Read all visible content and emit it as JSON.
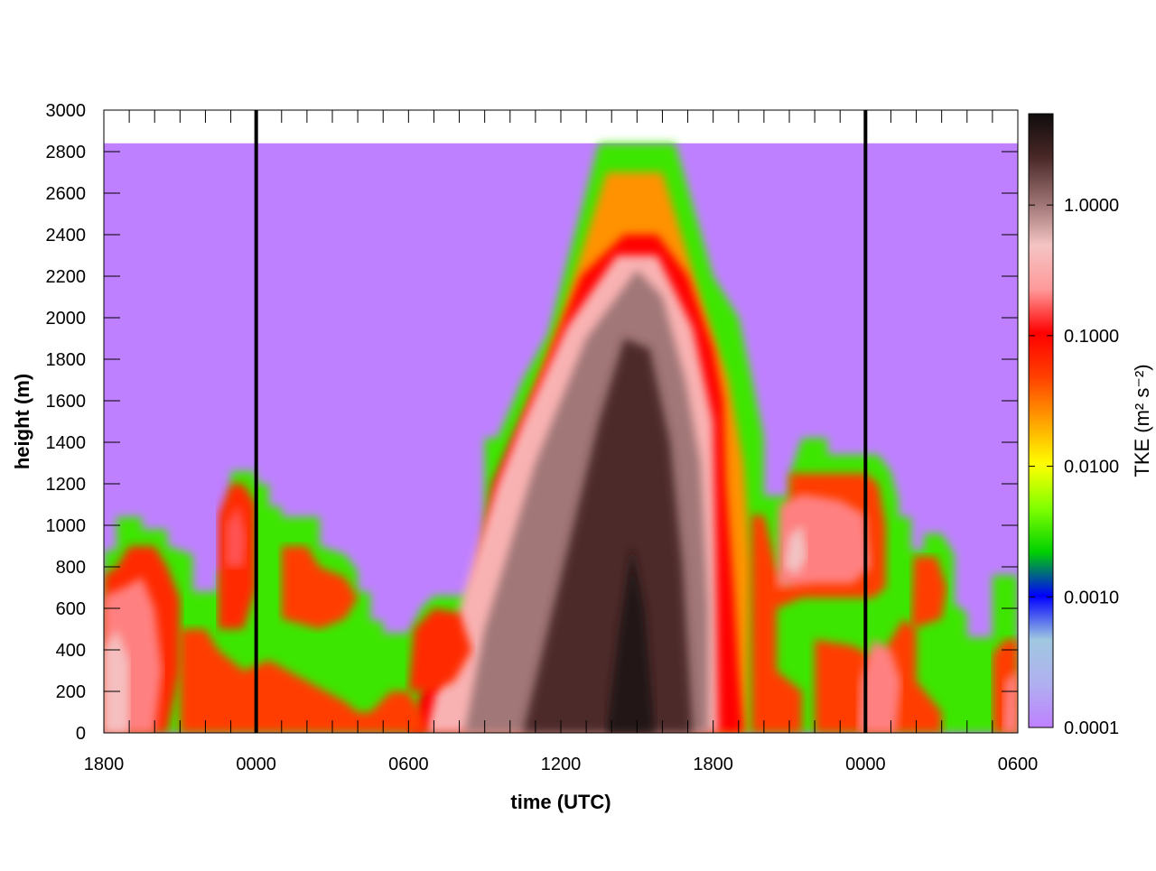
{
  "chart_data": {
    "type": "heatmap",
    "title": "",
    "xlabel": "time (UTC)",
    "ylabel": "height (m)",
    "x_ticks": [
      "1800",
      "0000",
      "0600",
      "1200",
      "1800",
      "0000",
      "0600"
    ],
    "x_tick_hours": [
      0,
      6,
      12,
      18,
      24,
      30,
      36
    ],
    "xlim_hours": [
      0,
      36
    ],
    "y_ticks": [
      0,
      200,
      400,
      600,
      800,
      1000,
      1200,
      1400,
      1600,
      1800,
      2000,
      2200,
      2400,
      2600,
      2800,
      3000
    ],
    "ylim": [
      0,
      3000
    ],
    "data_top_height": 2840,
    "midnight_lines_hours": [
      6,
      30
    ],
    "colorbar": {
      "label": "TKE (m² s⁻²)",
      "scale": "log",
      "range": [
        0.0001,
        5.0
      ],
      "tick_labels": [
        "1.0000",
        "0.1000",
        "0.0100",
        "0.0010",
        "0.0001"
      ],
      "tick_values": [
        1.0,
        0.1,
        0.01,
        0.001,
        0.0001
      ],
      "colors": [
        "#bf80ff",
        "#b0b0f0",
        "#a0c8e0",
        "#0000ff",
        "#00d000",
        "#80ff00",
        "#ffff00",
        "#ffa000",
        "#ff4000",
        "#ff0000",
        "#ff9a9a",
        "#f4c4c4",
        "#9a7070",
        "#4a2828",
        "#100c0c"
      ]
    },
    "layers": [
      {
        "name": "background-low-tke",
        "log_tke": -4,
        "points": [
          [
            0,
            0
          ],
          [
            0,
            2840
          ],
          [
            36,
            2840
          ],
          [
            36,
            0
          ]
        ]
      },
      {
        "name": "lowest-wavy",
        "log_tke": -2.5,
        "points": [
          [
            0,
            0
          ],
          [
            0,
            880
          ],
          [
            0.5,
            880
          ],
          [
            0.5,
            1040
          ],
          [
            1.5,
            1040
          ],
          [
            1.5,
            980
          ],
          [
            2.5,
            980
          ],
          [
            2.5,
            900
          ],
          [
            3.5,
            860
          ],
          [
            3.5,
            680
          ],
          [
            4.5,
            680
          ],
          [
            4.5,
            780
          ],
          [
            5,
            780
          ],
          [
            5,
            1260
          ],
          [
            5.5,
            1260
          ],
          [
            6,
            1260
          ],
          [
            6,
            1200
          ],
          [
            6.5,
            1200
          ],
          [
            6.5,
            1090
          ],
          [
            7,
            1090
          ],
          [
            7,
            1040
          ],
          [
            8.5,
            1040
          ],
          [
            8.5,
            900
          ],
          [
            9.5,
            860
          ],
          [
            10,
            780
          ],
          [
            10,
            680
          ],
          [
            10.5,
            680
          ],
          [
            10.5,
            540
          ],
          [
            11,
            540
          ],
          [
            11,
            480
          ],
          [
            12,
            480
          ],
          [
            12.5,
            600
          ],
          [
            13,
            660
          ],
          [
            14.5,
            660
          ],
          [
            14.5,
            700
          ],
          [
            15,
            700
          ],
          [
            15,
            1420
          ],
          [
            15.5,
            1420
          ],
          [
            16.5,
            1700
          ],
          [
            17.5,
            1920
          ],
          [
            19.5,
            2840
          ],
          [
            22.5,
            2840
          ],
          [
            24,
            2200
          ],
          [
            25,
            2000
          ],
          [
            25.5,
            1720
          ],
          [
            26,
            1420
          ],
          [
            26,
            1140
          ],
          [
            27,
            1140
          ],
          [
            27,
            1240
          ],
          [
            27.5,
            1420
          ],
          [
            28.5,
            1420
          ],
          [
            28.5,
            1340
          ],
          [
            30,
            1340
          ],
          [
            30.5,
            1340
          ],
          [
            31,
            1260
          ],
          [
            31.3,
            1120
          ],
          [
            31.3,
            1040
          ],
          [
            31.8,
            1040
          ],
          [
            31.8,
            880
          ],
          [
            32.3,
            880
          ],
          [
            32.3,
            960
          ],
          [
            33,
            960
          ],
          [
            33.5,
            860
          ],
          [
            33.5,
            620
          ],
          [
            34,
            580
          ],
          [
            34,
            460
          ],
          [
            35,
            460
          ],
          [
            35,
            600
          ],
          [
            35,
            760
          ],
          [
            36,
            760
          ],
          [
            36,
            0
          ]
        ]
      },
      {
        "name": "wedge-middle",
        "log_tke": -1.6,
        "points": [
          [
            15.8,
            0
          ],
          [
            15.8,
            1200
          ],
          [
            16.8,
            1600
          ],
          [
            18,
            2000
          ],
          [
            19.8,
            2700
          ],
          [
            22,
            2700
          ],
          [
            23.5,
            2100
          ],
          [
            24.6,
            1700
          ],
          [
            25.2,
            1300
          ],
          [
            25.5,
            800
          ],
          [
            25.3,
            0
          ]
        ]
      },
      {
        "name": "wedge-outer",
        "log_tke": -1.0,
        "points": [
          [
            12,
            0
          ],
          [
            12.5,
            200
          ],
          [
            13.5,
            500
          ],
          [
            14.5,
            600
          ],
          [
            15,
            1000
          ],
          [
            15.3,
            1200
          ],
          [
            16,
            1400
          ],
          [
            17.3,
            1750
          ],
          [
            18.8,
            2200
          ],
          [
            20.5,
            2400
          ],
          [
            21.8,
            2400
          ],
          [
            23,
            2200
          ],
          [
            24,
            1850
          ],
          [
            24.4,
            1600
          ],
          [
            24.5,
            1200
          ],
          [
            24.8,
            700
          ],
          [
            25,
            300
          ],
          [
            25.2,
            0
          ]
        ]
      },
      {
        "name": "wedge-pink",
        "log_tke": -0.45,
        "points": [
          [
            12.7,
            0
          ],
          [
            13.5,
            400
          ],
          [
            14.5,
            800
          ],
          [
            15.5,
            1200
          ],
          [
            16.5,
            1500
          ],
          [
            18.2,
            1950
          ],
          [
            20.2,
            2300
          ],
          [
            21.8,
            2300
          ],
          [
            23.2,
            1950
          ],
          [
            24,
            1500
          ],
          [
            24.1,
            900
          ],
          [
            24.2,
            0
          ]
        ]
      },
      {
        "name": "wedge-brown",
        "log_tke": 0.0,
        "points": [
          [
            14.2,
            0
          ],
          [
            15,
            500
          ],
          [
            16,
            900
          ],
          [
            17,
            1300
          ],
          [
            18,
            1600
          ],
          [
            19,
            1900
          ],
          [
            21,
            2230
          ],
          [
            22,
            2100
          ],
          [
            22.9,
            1700
          ],
          [
            23.5,
            1300
          ],
          [
            23.8,
            600
          ],
          [
            23.8,
            0
          ]
        ]
      },
      {
        "name": "wedge-dark",
        "log_tke": 0.35,
        "points": [
          [
            16.5,
            0
          ],
          [
            17.5,
            500
          ],
          [
            18.5,
            1000
          ],
          [
            19.5,
            1500
          ],
          [
            20.5,
            1900
          ],
          [
            21.5,
            1850
          ],
          [
            22.3,
            1400
          ],
          [
            22.8,
            800
          ],
          [
            23.2,
            0
          ]
        ]
      },
      {
        "name": "wedge-core",
        "log_tke": 0.6,
        "points": [
          [
            19.8,
            0
          ],
          [
            20.3,
            500
          ],
          [
            20.8,
            900
          ],
          [
            21.3,
            600
          ],
          [
            21.7,
            0
          ]
        ]
      },
      {
        "name": "left-plume-red",
        "log_tke": -1.2,
        "points": [
          [
            0,
            0
          ],
          [
            0,
            760
          ],
          [
            0.5,
            800
          ],
          [
            1,
            900
          ],
          [
            2,
            900
          ],
          [
            2.5,
            800
          ],
          [
            3,
            650
          ],
          [
            3,
            300
          ],
          [
            2.5,
            0
          ]
        ]
      },
      {
        "name": "left-plume-pink",
        "log_tke": -0.7,
        "points": [
          [
            0,
            0
          ],
          [
            0,
            660
          ],
          [
            0.8,
            700
          ],
          [
            1.5,
            750
          ],
          [
            2,
            600
          ],
          [
            2.3,
            300
          ],
          [
            2,
            0
          ]
        ]
      },
      {
        "name": "left-plume-brown",
        "log_tke": -0.35,
        "points": [
          [
            0,
            0
          ],
          [
            0,
            400
          ],
          [
            0.5,
            500
          ],
          [
            1,
            350
          ],
          [
            1,
            0
          ]
        ]
      },
      {
        "name": "low-red-band",
        "log_tke": -1.3,
        "points": [
          [
            3,
            0
          ],
          [
            3,
            500
          ],
          [
            4,
            500
          ],
          [
            4.5,
            400
          ],
          [
            5.5,
            300
          ],
          [
            6.5,
            350
          ],
          [
            8,
            250
          ],
          [
            9.5,
            150
          ],
          [
            10,
            100
          ],
          [
            10.5,
            100
          ],
          [
            11.3,
            200
          ],
          [
            12,
            200
          ],
          [
            12.5,
            100
          ],
          [
            12.7,
            0
          ]
        ]
      },
      {
        "name": "pre-midnight-plume",
        "log_tke": -1.2,
        "points": [
          [
            4.5,
            500
          ],
          [
            4.5,
            1050
          ],
          [
            5,
            1200
          ],
          [
            5.5,
            1200
          ],
          [
            6,
            1100
          ],
          [
            6,
            700
          ],
          [
            5.5,
            500
          ]
        ]
      },
      {
        "name": "pre-midnight-pink",
        "log_tke": -0.8,
        "points": [
          [
            4.8,
            800
          ],
          [
            4.8,
            1000
          ],
          [
            5.3,
            1100
          ],
          [
            5.6,
            950
          ],
          [
            5.5,
            800
          ]
        ]
      },
      {
        "name": "post-midnight-red",
        "log_tke": -1.3,
        "points": [
          [
            7,
            550
          ],
          [
            7,
            900
          ],
          [
            8,
            900
          ],
          [
            8.5,
            800
          ],
          [
            9.5,
            750
          ],
          [
            10,
            650
          ],
          [
            9.5,
            550
          ],
          [
            8.5,
            500
          ]
        ]
      },
      {
        "name": "morning-red",
        "log_tke": -1.2,
        "points": [
          [
            12,
            200
          ],
          [
            12.2,
            500
          ],
          [
            13,
            600
          ],
          [
            14,
            580
          ],
          [
            14.5,
            400
          ],
          [
            13.8,
            250
          ],
          [
            13,
            200
          ]
        ]
      },
      {
        "name": "evening-plume-red",
        "log_tke": -1.3,
        "points": [
          [
            25.5,
            0
          ],
          [
            25.5,
            1050
          ],
          [
            26,
            1050
          ],
          [
            26.5,
            800
          ],
          [
            27,
            700
          ],
          [
            27,
            1250
          ],
          [
            28,
            1250
          ],
          [
            29,
            1250
          ],
          [
            30,
            1250
          ],
          [
            30.5,
            1200
          ],
          [
            30.8,
            1000
          ],
          [
            30.8,
            700
          ],
          [
            30.3,
            650
          ],
          [
            29,
            650
          ],
          [
            27.5,
            650
          ],
          [
            26.5,
            600
          ],
          [
            26.5,
            300
          ],
          [
            27.5,
            200
          ],
          [
            27.5,
            0
          ]
        ]
      },
      {
        "name": "evening-plume-pink",
        "log_tke": -0.7,
        "points": [
          [
            26.5,
            700
          ],
          [
            26.6,
            1100
          ],
          [
            27.5,
            1150
          ],
          [
            29,
            1120
          ],
          [
            30,
            1050
          ],
          [
            30.2,
            800
          ],
          [
            29.5,
            720
          ],
          [
            28,
            720
          ]
        ]
      },
      {
        "name": "evening-plume-brown",
        "log_tke": -0.3,
        "points": [
          [
            26.8,
            800
          ],
          [
            27,
            950
          ],
          [
            27.5,
            1000
          ],
          [
            27.7,
            850
          ],
          [
            27.3,
            760
          ]
        ]
      },
      {
        "name": "night2-red",
        "log_tke": -1.3,
        "points": [
          [
            28,
            0
          ],
          [
            28,
            450
          ],
          [
            29.5,
            420
          ],
          [
            30.5,
            350
          ],
          [
            31.5,
            550
          ],
          [
            32,
            500
          ],
          [
            32,
            250
          ],
          [
            33,
            100
          ],
          [
            33,
            0
          ]
        ]
      },
      {
        "name": "night2-pink",
        "log_tke": -0.7,
        "points": [
          [
            29.7,
            0
          ],
          [
            29.8,
            250
          ],
          [
            30.3,
            450
          ],
          [
            31,
            400
          ],
          [
            31.4,
            250
          ],
          [
            31.2,
            0
          ]
        ]
      },
      {
        "name": "night2-plume-red",
        "log_tke": -1.3,
        "points": [
          [
            31.8,
            500
          ],
          [
            31.9,
            850
          ],
          [
            32.8,
            850
          ],
          [
            33.2,
            700
          ],
          [
            33,
            550
          ]
        ]
      },
      {
        "name": "right-red",
        "log_tke": -1.3,
        "points": [
          [
            35,
            0
          ],
          [
            35,
            380
          ],
          [
            35.5,
            450
          ],
          [
            36,
            450
          ],
          [
            36,
            0
          ]
        ]
      },
      {
        "name": "right-pink",
        "log_tke": -0.7,
        "points": [
          [
            35.4,
            0
          ],
          [
            35.5,
            250
          ],
          [
            36,
            300
          ],
          [
            36,
            0
          ]
        ]
      }
    ]
  }
}
